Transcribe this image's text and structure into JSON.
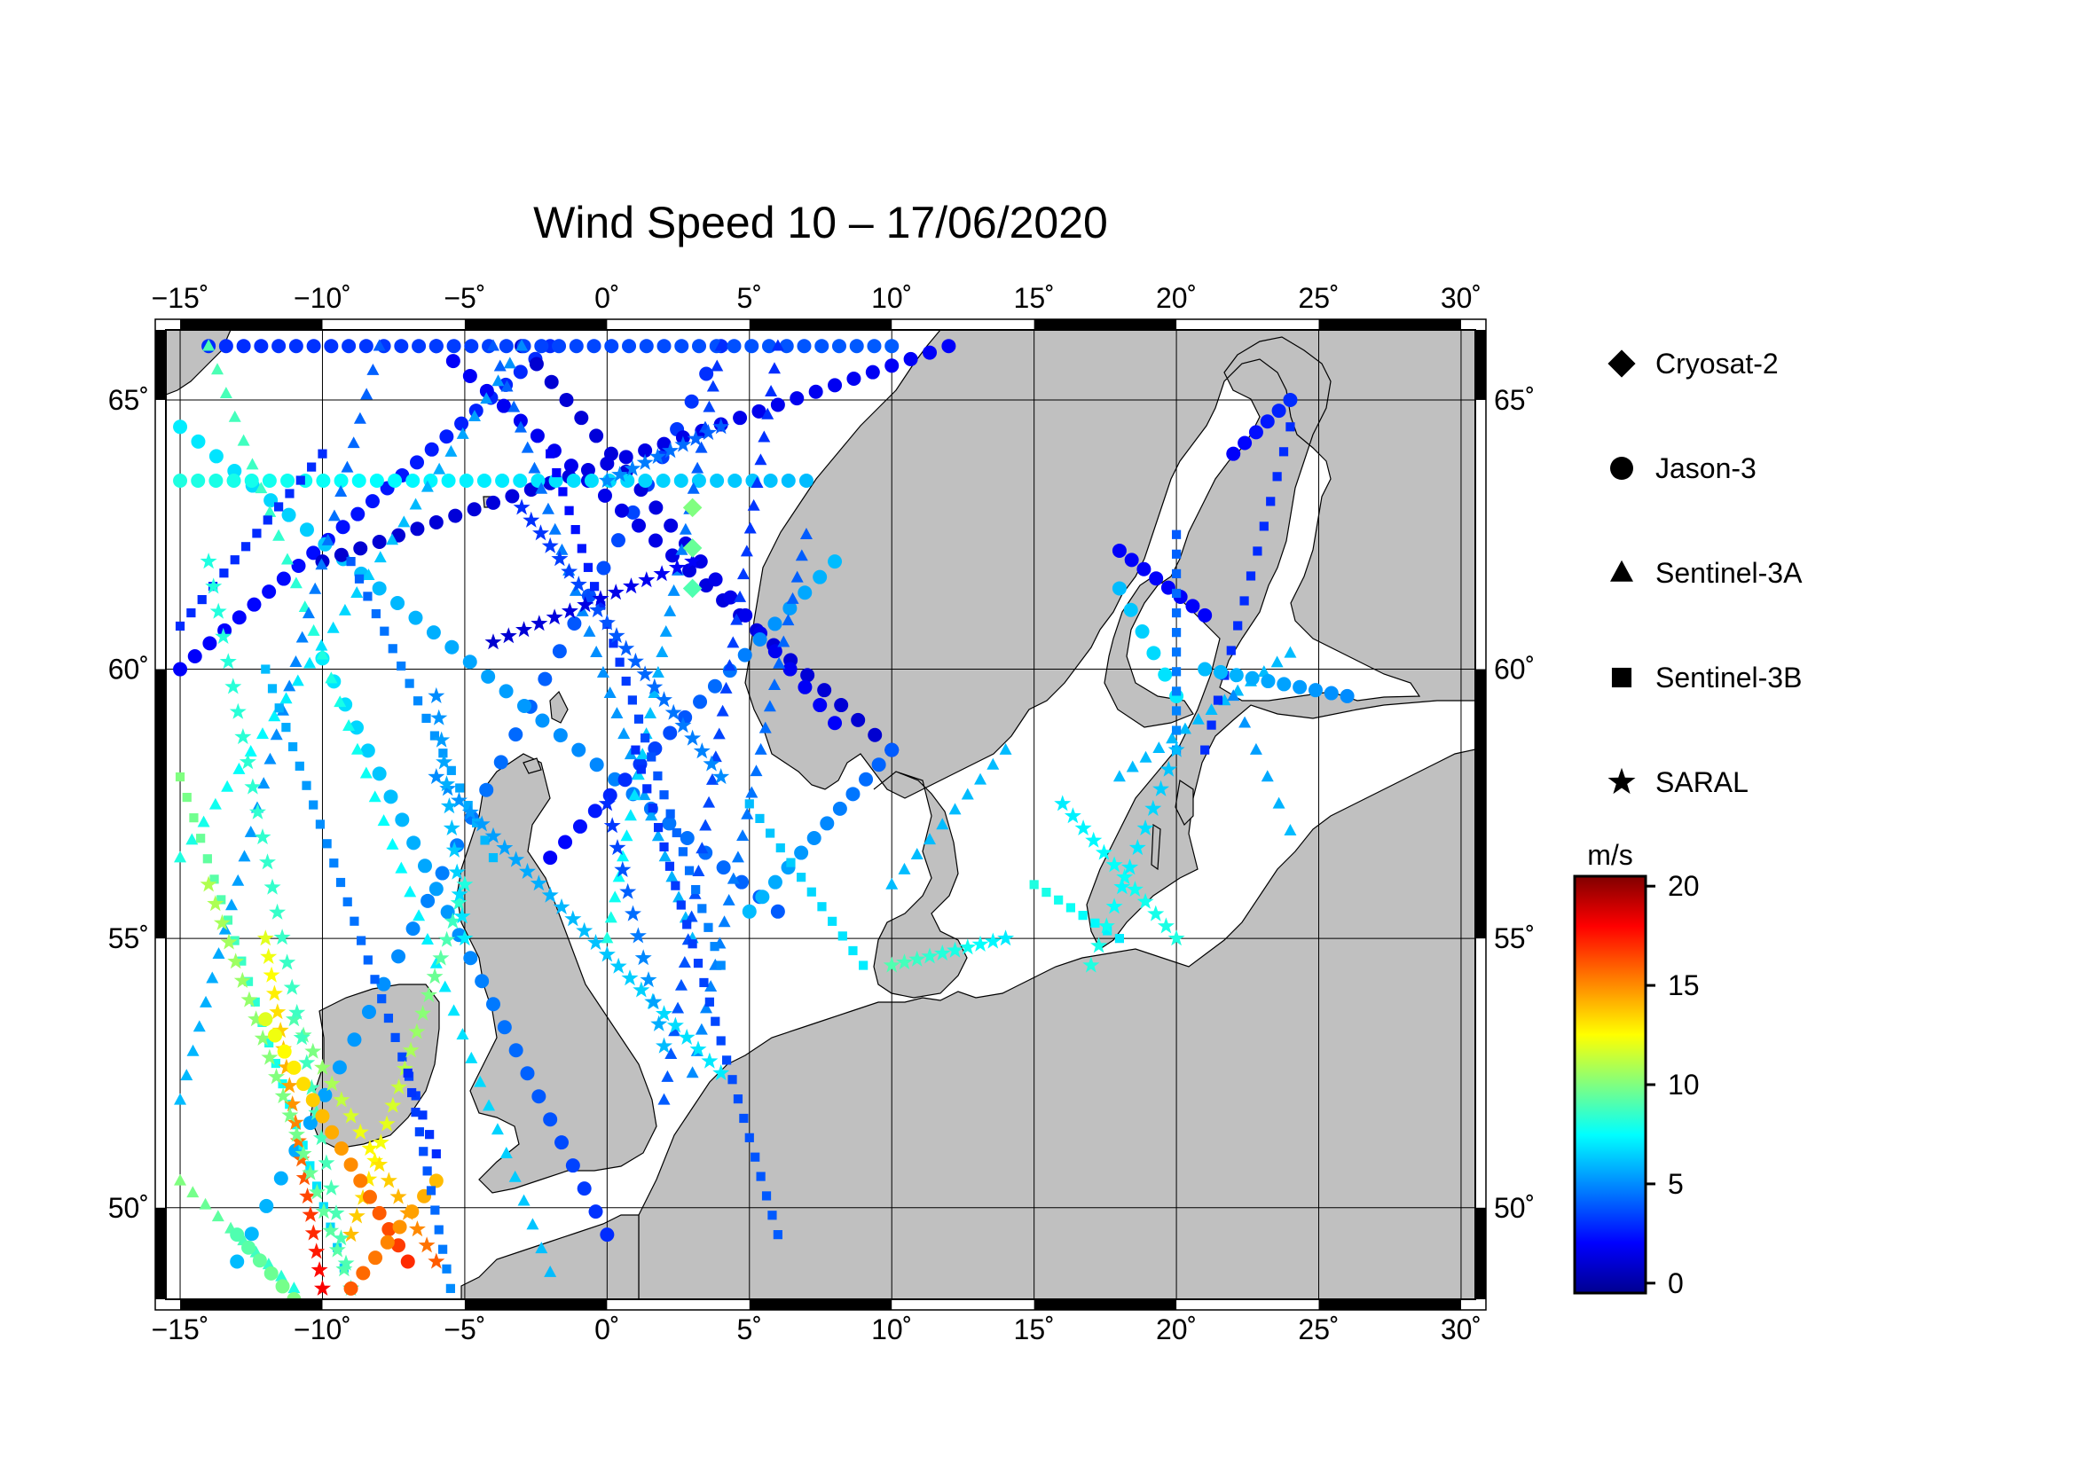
{
  "title": "Wind Speed 10 – 17/06/2020",
  "axes": {
    "lon_ticks": [
      "−15˚",
      "−10˚",
      "−5˚",
      "0˚",
      "5˚",
      "10˚",
      "15˚",
      "20˚",
      "25˚",
      "30˚"
    ],
    "lon_values": [
      -15,
      -10,
      -5,
      0,
      5,
      10,
      15,
      20,
      25,
      30
    ],
    "lat_ticks": [
      "50˚",
      "55˚",
      "60˚",
      "65˚"
    ],
    "lat_values": [
      50,
      55,
      60,
      65
    ],
    "lon_range": [
      -15.5,
      30.5
    ],
    "lat_range": [
      48.3,
      66.3
    ]
  },
  "legend": {
    "items": [
      {
        "label": "Cryosat-2",
        "marker": "diamond"
      },
      {
        "label": "Jason-3",
        "marker": "circle"
      },
      {
        "label": "Sentinel-3A",
        "marker": "triangle"
      },
      {
        "label": "Sentinel-3B",
        "marker": "square"
      },
      {
        "label": "SARAL",
        "marker": "star"
      }
    ]
  },
  "colorbar": {
    "unit": "m/s",
    "ticks": [
      "0",
      "5",
      "10",
      "15",
      "20"
    ],
    "tick_values": [
      0,
      5,
      10,
      15,
      20
    ],
    "range": [
      -0.5,
      20.5
    ],
    "colormap": [
      "#00008f",
      "#0000ff",
      "#0080ff",
      "#00ffff",
      "#80ff80",
      "#ffff00",
      "#ff8000",
      "#ff0000",
      "#800000"
    ]
  },
  "colors": {
    "land": "#c0c0c0",
    "sea": "#ffffff",
    "grid": "#000000"
  },
  "chart_data": {
    "type": "scatter",
    "title": "Wind Speed 10 – 17/06/2020",
    "colorbar_label": "m/s",
    "xlim": [
      -15.5,
      30.5
    ],
    "ylim": [
      48.3,
      66.3
    ],
    "grid": true,
    "legend_position": "right",
    "tracks": [
      {
        "sat": "Jason-3",
        "from": [
          -15,
          60.0
        ],
        "to": [
          -2,
          66.0
        ],
        "n": 26,
        "w": [
          2,
          3
        ]
      },
      {
        "sat": "Jason-3",
        "from": [
          -13,
          49.0
        ],
        "to": [
          4,
          66.0
        ],
        "n": 34,
        "w": [
          6,
          3
        ]
      },
      {
        "sat": "Jason-3",
        "from": [
          -15,
          64.5
        ],
        "to": [
          6,
          55.5
        ],
        "n": 34,
        "w": [
          7,
          4
        ]
      },
      {
        "sat": "Jason-3",
        "from": [
          -6,
          66.0
        ],
        "to": [
          10,
          58.5
        ],
        "n": 28,
        "w": [
          2,
          1
        ]
      },
      {
        "sat": "Jason-3",
        "from": [
          -3,
          66.0
        ],
        "to": [
          8,
          59.0
        ],
        "n": 22,
        "w": [
          1,
          2
        ]
      },
      {
        "sat": "Jason-3",
        "from": [
          -10,
          62.0
        ],
        "to": [
          12,
          66.0
        ],
        "n": 34,
        "w": [
          1,
          2
        ]
      },
      {
        "sat": "Jason-3",
        "from": [
          -14,
          66.0
        ],
        "to": [
          10,
          66.0
        ],
        "n": 40,
        "w": [
          3,
          4
        ]
      },
      {
        "sat": "Jason-3",
        "from": [
          -15,
          63.5
        ],
        "to": [
          7,
          63.5
        ],
        "n": 36,
        "w": [
          8,
          6
        ]
      },
      {
        "sat": "Jason-3",
        "from": [
          -10,
          60.2
        ],
        "to": [
          0,
          49.5
        ],
        "n": 26,
        "w": [
          7,
          3
        ]
      },
      {
        "sat": "Jason-3",
        "from": [
          -2,
          56.5
        ],
        "to": [
          8,
          62.0
        ],
        "n": 20,
        "w": [
          2,
          6
        ]
      },
      {
        "sat": "Jason-3",
        "from": [
          5,
          55.5
        ],
        "to": [
          10,
          58.5
        ],
        "n": 12,
        "w": [
          6,
          4
        ]
      },
      {
        "sat": "Jason-3",
        "from": [
          18,
          62.2
        ],
        "to": [
          21,
          61.0
        ],
        "n": 8,
        "w": [
          2,
          2
        ]
      },
      {
        "sat": "Jason-3",
        "from": [
          22,
          64.0
        ],
        "to": [
          24,
          65.0
        ],
        "n": 6,
        "w": [
          2,
          3
        ]
      },
      {
        "sat": "Jason-3",
        "from": [
          18,
          61.5
        ],
        "to": [
          20,
          59.5
        ],
        "n": 6,
        "w": [
          6,
          7
        ]
      },
      {
        "sat": "Sentinel-3A",
        "from": [
          -14,
          66.0
        ],
        "to": [
          -2,
          48.8
        ],
        "n": 40,
        "w": [
          9,
          6
        ]
      },
      {
        "sat": "Sentinel-3A",
        "from": [
          -15,
          52.0
        ],
        "to": [
          -8,
          66.0
        ],
        "n": 32,
        "w": [
          6,
          4
        ]
      },
      {
        "sat": "Sentinel-3A",
        "from": [
          -15,
          56.5
        ],
        "to": [
          -3,
          66.0
        ],
        "n": 30,
        "w": [
          8,
          5
        ]
      },
      {
        "sat": "Sentinel-3A",
        "from": [
          -4,
          66.0
        ],
        "to": [
          3,
          55.0
        ],
        "n": 30,
        "w": [
          4,
          6
        ]
      },
      {
        "sat": "Sentinel-3A",
        "from": [
          0,
          55.0
        ],
        "to": [
          4,
          66.0
        ],
        "n": 30,
        "w": [
          8,
          3
        ]
      },
      {
        "sat": "Sentinel-3A",
        "from": [
          2,
          52.0
        ],
        "to": [
          6,
          66.0
        ],
        "n": 34,
        "w": [
          4,
          3
        ]
      },
      {
        "sat": "Sentinel-3A",
        "from": [
          3,
          52.5
        ],
        "to": [
          7,
          62.5
        ],
        "n": 26,
        "w": [
          5,
          4
        ]
      },
      {
        "sat": "Sentinel-3A",
        "from": [
          10,
          56.0
        ],
        "to": [
          14,
          58.5
        ],
        "n": 10,
        "w": [
          6,
          6
        ]
      },
      {
        "sat": "Sentinel-3A",
        "from": [
          18,
          58.0
        ],
        "to": [
          24,
          60.3
        ],
        "n": 14,
        "w": [
          6,
          6
        ]
      },
      {
        "sat": "Sentinel-3A",
        "from": [
          22,
          59.5
        ],
        "to": [
          24,
          57.0
        ],
        "n": 6,
        "w": [
          5,
          6
        ]
      },
      {
        "sat": "Sentinel-3A",
        "from": [
          -15,
          50.5
        ],
        "to": [
          -11,
          48.5
        ],
        "n": 10,
        "w": [
          10,
          8
        ]
      },
      {
        "sat": "Sentinel-3B",
        "from": [
          -15,
          58.0
        ],
        "to": [
          -9,
          48.5
        ],
        "n": 26,
        "w": [
          10,
          6
        ]
      },
      {
        "sat": "Sentinel-3B",
        "from": [
          -12,
          60.0
        ],
        "to": [
          -6,
          51.0
        ],
        "n": 26,
        "w": [
          6,
          3
        ]
      },
      {
        "sat": "Sentinel-3B",
        "from": [
          -9,
          62.0
        ],
        "to": [
          -4,
          56.5
        ],
        "n": 18,
        "w": [
          4,
          6
        ]
      },
      {
        "sat": "Sentinel-3B",
        "from": [
          -2,
          64.0
        ],
        "to": [
          4,
          54.5
        ],
        "n": 28,
        "w": [
          2,
          5
        ]
      },
      {
        "sat": "Sentinel-3B",
        "from": [
          1,
          58.5
        ],
        "to": [
          6,
          49.5
        ],
        "n": 26,
        "w": [
          3,
          4
        ]
      },
      {
        "sat": "Sentinel-3B",
        "from": [
          5,
          57.5
        ],
        "to": [
          9,
          54.5
        ],
        "n": 12,
        "w": [
          6,
          7
        ]
      },
      {
        "sat": "Sentinel-3B",
        "from": [
          15,
          56.0
        ],
        "to": [
          18,
          55.0
        ],
        "n": 8,
        "w": [
          8,
          7
        ]
      },
      {
        "sat": "Sentinel-3B",
        "from": [
          20,
          62.5
        ],
        "to": [
          20,
          58.5
        ],
        "n": 12,
        "w": [
          4,
          5
        ]
      },
      {
        "sat": "Sentinel-3B",
        "from": [
          21,
          58.5
        ],
        "to": [
          24,
          64.5
        ],
        "n": 14,
        "w": [
          3,
          3
        ]
      },
      {
        "sat": "Sentinel-3B",
        "from": [
          -15,
          60.8
        ],
        "to": [
          -10,
          64.0
        ],
        "n": 14,
        "w": [
          3,
          3
        ]
      },
      {
        "sat": "SARAL",
        "from": [
          -12,
          55.0
        ],
        "to": [
          -10,
          48.5
        ],
        "n": 20,
        "w": [
          12,
          18
        ]
      },
      {
        "sat": "SARAL",
        "from": [
          -14,
          56.0
        ],
        "to": [
          -9,
          48.5
        ],
        "n": 22,
        "w": [
          11,
          9
        ]
      },
      {
        "sat": "SARAL",
        "from": [
          -9,
          49.5
        ],
        "to": [
          -5,
          56.0
        ],
        "n": 20,
        "w": [
          14,
          8
        ]
      },
      {
        "sat": "SARAL",
        "from": [
          -11,
          53.5
        ],
        "to": [
          -6,
          49.0
        ],
        "n": 16,
        "w": [
          9,
          16
        ]
      },
      {
        "sat": "SARAL",
        "from": [
          -14,
          62.0
        ],
        "to": [
          -9,
          48.5
        ],
        "n": 30,
        "w": [
          8,
          9
        ]
      },
      {
        "sat": "SARAL",
        "from": [
          -6,
          58.0
        ],
        "to": [
          4,
          52.5
        ],
        "n": 26,
        "w": [
          5,
          7
        ]
      },
      {
        "sat": "SARAL",
        "from": [
          -3,
          63.0
        ],
        "to": [
          4,
          58.0
        ],
        "n": 22,
        "w": [
          3,
          5
        ]
      },
      {
        "sat": "SARAL",
        "from": [
          -4,
          60.5
        ],
        "to": [
          3,
          62.0
        ],
        "n": 14,
        "w": [
          1,
          2
        ]
      },
      {
        "sat": "SARAL",
        "from": [
          0,
          63.5
        ],
        "to": [
          4,
          64.5
        ],
        "n": 10,
        "w": [
          5,
          4
        ]
      },
      {
        "sat": "SARAL",
        "from": [
          10,
          54.5
        ],
        "to": [
          14,
          55.0
        ],
        "n": 10,
        "w": [
          9,
          7
        ]
      },
      {
        "sat": "SARAL",
        "from": [
          16,
          57.5
        ],
        "to": [
          20,
          55.0
        ],
        "n": 12,
        "w": [
          7,
          8
        ]
      },
      {
        "sat": "SARAL",
        "from": [
          17,
          54.5
        ],
        "to": [
          20,
          58.5
        ],
        "n": 12,
        "w": [
          8,
          6
        ]
      },
      {
        "sat": "SARAL",
        "from": [
          -6,
          59.5
        ],
        "to": [
          -5,
          55.0
        ],
        "n": 12,
        "w": [
          5,
          7
        ]
      },
      {
        "sat": "SARAL",
        "from": [
          0,
          57.5
        ],
        "to": [
          2,
          53.0
        ],
        "n": 12,
        "w": [
          3,
          6
        ]
      },
      {
        "sat": "Jason-3",
        "from": [
          -7,
          49.0
        ],
        "to": [
          -12,
          53.5
        ],
        "n": 16,
        "w": [
          17,
          12
        ]
      },
      {
        "sat": "Jason-3",
        "from": [
          -9,
          48.5
        ],
        "to": [
          -6,
          50.5
        ],
        "n": 8,
        "w": [
          16,
          14
        ]
      },
      {
        "sat": "Jason-3",
        "from": [
          -13,
          49.5
        ],
        "to": [
          -11,
          48.3
        ],
        "n": 6,
        "w": [
          9,
          10
        ]
      },
      {
        "sat": "Jason-3",
        "from": [
          21,
          60.0
        ],
        "to": [
          26,
          59.5
        ],
        "n": 10,
        "w": [
          6,
          5
        ]
      },
      {
        "sat": "Sentinel-3B",
        "from": [
          -7,
          52.5
        ],
        "to": [
          -5.5,
          48.5
        ],
        "n": 12,
        "w": [
          3,
          5
        ]
      },
      {
        "sat": "Cryosat-2",
        "from": [
          3,
          63.0
        ],
        "to": [
          3,
          61.5
        ],
        "n": 3,
        "w": [
          10,
          9
        ]
      }
    ]
  }
}
